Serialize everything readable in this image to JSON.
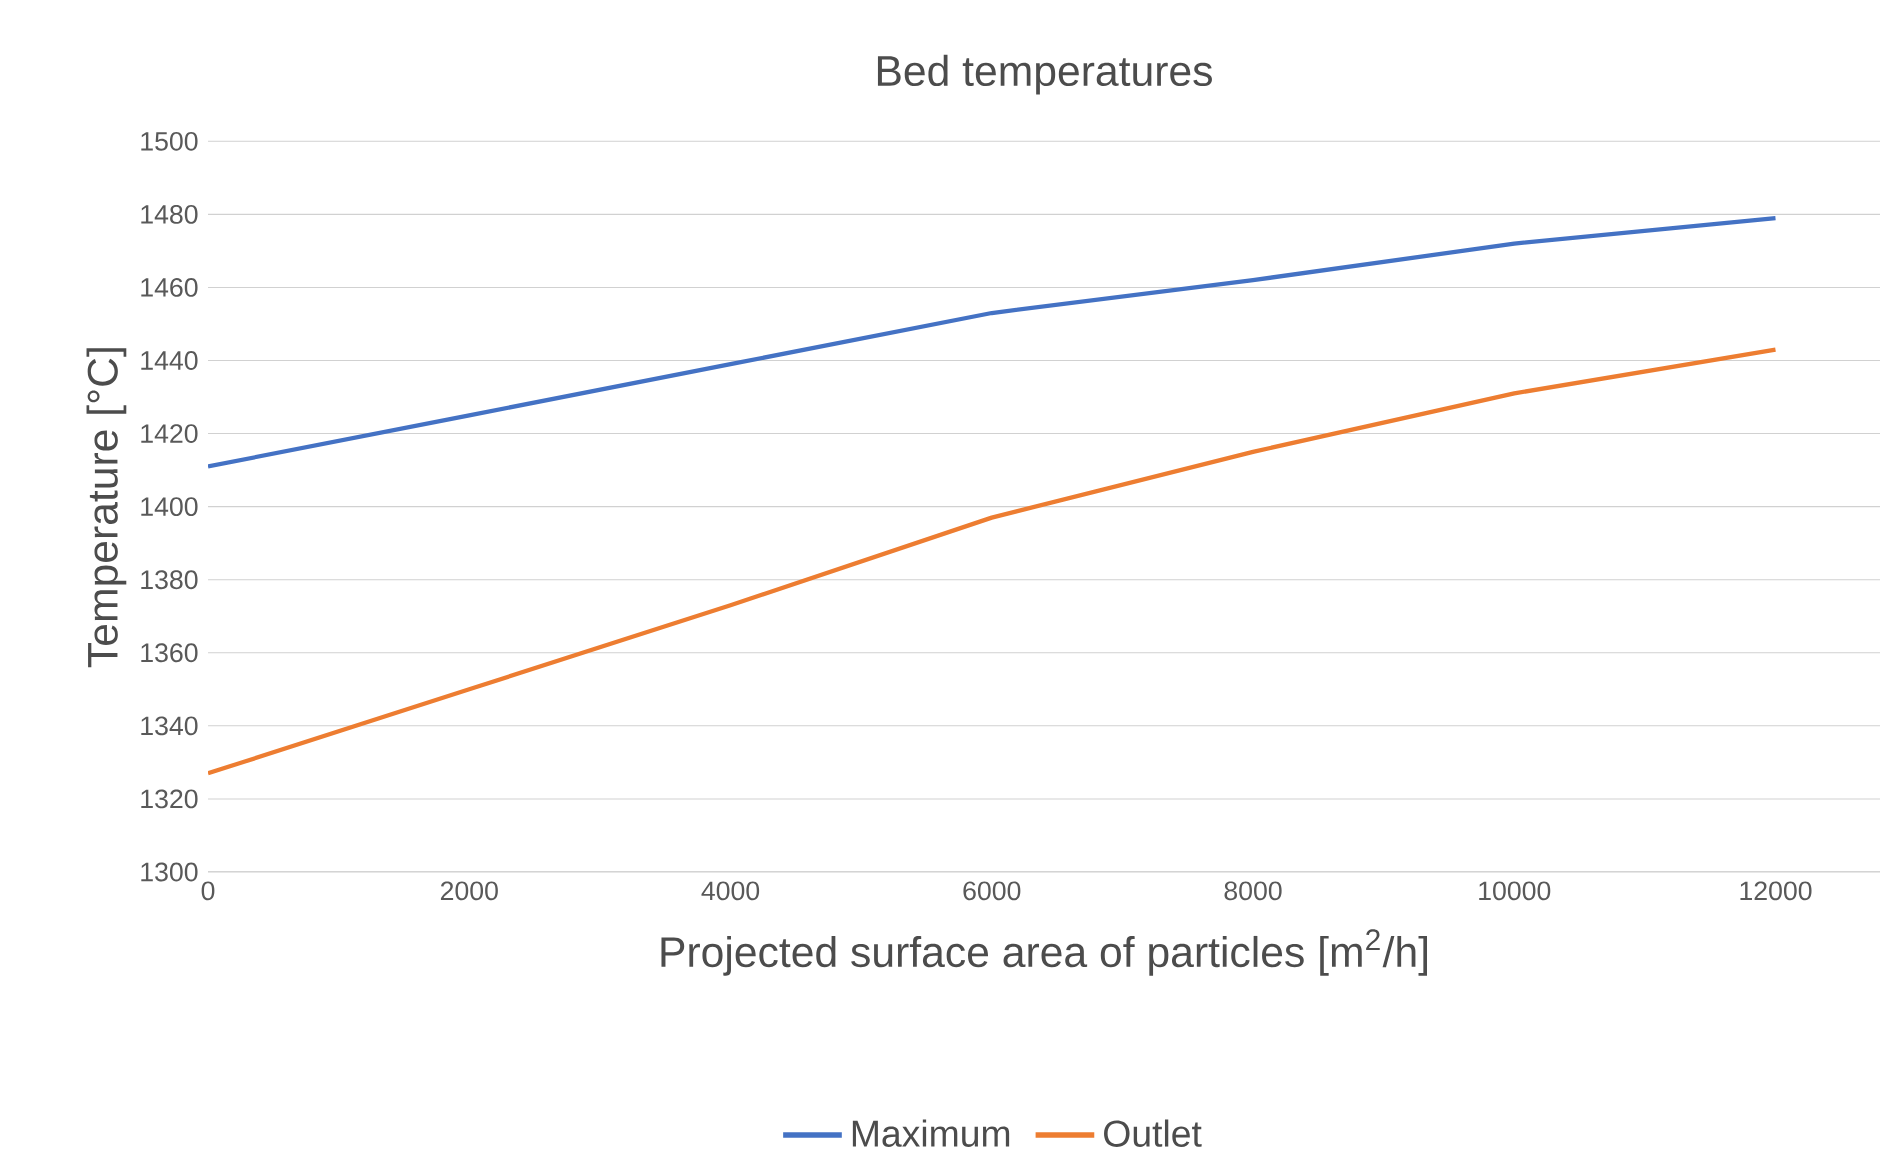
{
  "chart_data": {
    "type": "line",
    "title": "Bed temperatures",
    "xlabel": "Projected surface area of particles [m$^{2}$/h]",
    "ylabel": "Temperature [°C]",
    "x": [
      0,
      2000,
      4000,
      6000,
      8000,
      10000,
      12000
    ],
    "series": [
      {
        "name": "Maximum",
        "color": "#4472c4",
        "values": [
          1411,
          1425,
          1439,
          1453,
          1462,
          1472,
          1479
        ]
      },
      {
        "name": "Outlet",
        "color": "#ed7d31",
        "values": [
          1327,
          1350,
          1373,
          1397,
          1415,
          1431,
          1443
        ]
      }
    ],
    "xlim": [
      0,
      12800
    ],
    "ylim": [
      1300,
      1500
    ],
    "xticks": [
      0,
      2000,
      4000,
      6000,
      8000,
      10000,
      12000
    ],
    "yticks": [
      1300,
      1320,
      1340,
      1360,
      1380,
      1400,
      1420,
      1440,
      1460,
      1480,
      1500
    ],
    "grid": "y",
    "legend": "bottom",
    "marker": "none",
    "line_style": "solid"
  }
}
